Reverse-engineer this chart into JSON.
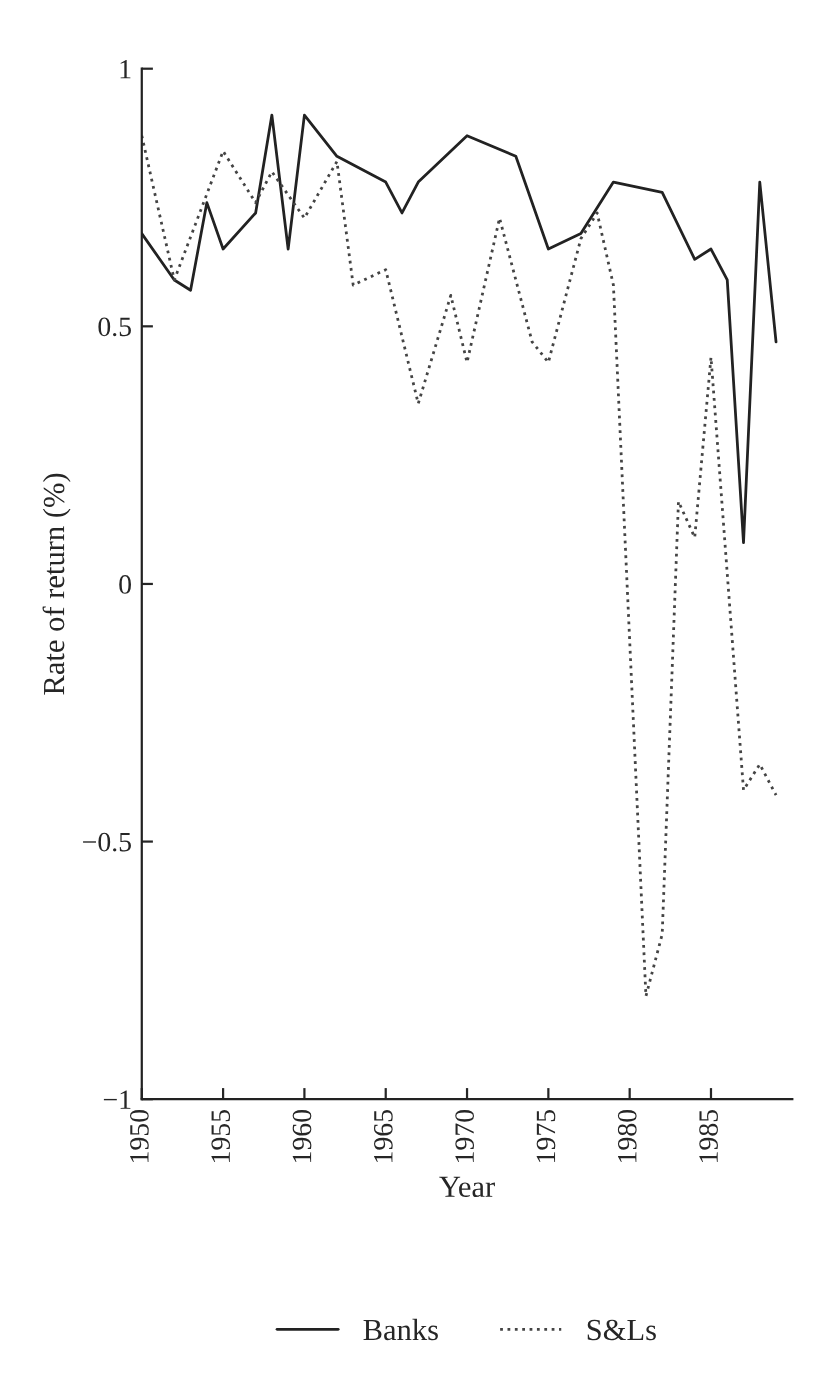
{
  "chart_data": {
    "type": "line",
    "xlabel": "Year",
    "ylabel": "Rate of return (%)",
    "xlim": [
      1950,
      1990
    ],
    "xticks": [
      1950,
      1955,
      1960,
      1965,
      1970,
      1975,
      1980,
      1985
    ],
    "ylim": [
      -1,
      1
    ],
    "yticks": [
      {
        "value": -1,
        "label": "−1"
      },
      {
        "value": -0.5,
        "label": "−0.5"
      },
      0,
      0.5,
      1
    ],
    "legend": "bottom",
    "grid": false,
    "series": [
      {
        "name": "Banks",
        "color": "#222222",
        "line_style": "solid",
        "x": [
          1950,
          1952,
          1953,
          1954,
          1955,
          1957,
          1958,
          1959,
          1960,
          1962,
          1965,
          1966,
          1967,
          1970,
          1973,
          1975,
          1977,
          1979,
          1982,
          1984,
          1985,
          1986,
          1987,
          1988,
          1989
        ],
        "values": [
          0.68,
          0.59,
          0.57,
          0.74,
          0.65,
          0.72,
          0.91,
          0.65,
          0.91,
          0.83,
          0.78,
          0.72,
          0.78,
          0.87,
          0.83,
          0.65,
          0.68,
          0.78,
          0.76,
          0.63,
          0.65,
          0.59,
          0.08,
          0.78,
          0.47
        ]
      },
      {
        "name": "S&Ls",
        "color": "#444444",
        "line_style": "dotted",
        "x": [
          1950,
          1952,
          1955,
          1957,
          1958,
          1960,
          1962,
          1963,
          1965,
          1967,
          1969,
          1970,
          1972,
          1974,
          1975,
          1977,
          1978,
          1979,
          1981,
          1982,
          1983,
          1984,
          1985,
          1987,
          1988,
          1989
        ],
        "values": [
          0.87,
          0.59,
          0.84,
          0.74,
          0.8,
          0.71,
          0.82,
          0.58,
          0.61,
          0.35,
          0.56,
          0.43,
          0.71,
          0.47,
          0.43,
          0.67,
          0.72,
          0.58,
          -0.8,
          -0.68,
          0.16,
          0.09,
          0.44,
          -0.4,
          -0.35,
          -0.41
        ]
      }
    ]
  }
}
